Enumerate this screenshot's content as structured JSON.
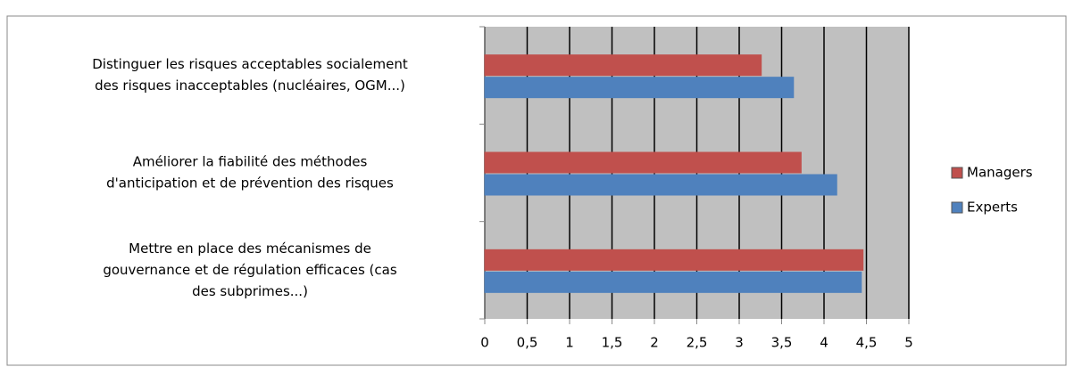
{
  "chart_data": {
    "type": "hbar",
    "categories": [
      [
        "Distinguer les risques acceptables socialement",
        "des risques inacceptables (nucléaires, OGM...)"
      ],
      [
        "Améliorer la fiabilité des méthodes",
        "d'anticipation et de prévention des risques"
      ],
      [
        "Mettre en place des mécanismes de",
        "gouvernance et de régulation efficaces (cas",
        "des subprimes...)"
      ]
    ],
    "series": [
      {
        "name": "Managers",
        "color": "#c0504d",
        "values": [
          3.26,
          3.73,
          4.46
        ]
      },
      {
        "name": "Experts",
        "color": "#4f81bd",
        "values": [
          3.64,
          4.15,
          4.44
        ]
      }
    ],
    "xlim": [
      0,
      5
    ],
    "xticks": [
      0,
      {
        "value": 0.5,
        "label": "0,5"
      },
      1,
      {
        "value": 1.5,
        "label": "1,5"
      },
      2,
      {
        "value": 2.5,
        "label": "2,5"
      },
      3,
      {
        "value": 3.5,
        "label": "3,5"
      },
      4,
      {
        "value": 4.5,
        "label": "4,5"
      },
      5
    ],
    "grid": true,
    "legend": "right"
  }
}
